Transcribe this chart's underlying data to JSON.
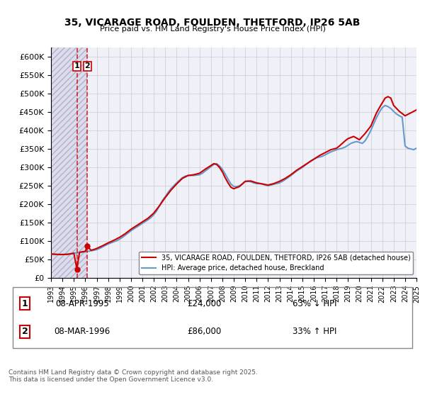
{
  "title": "35, VICARAGE ROAD, FOULDEN, THETFORD, IP26 5AB",
  "subtitle": "Price paid vs. HM Land Registry's House Price Index (HPI)",
  "legend_line1": "35, VICARAGE ROAD, FOULDEN, THETFORD, IP26 5AB (detached house)",
  "legend_line2": "HPI: Average price, detached house, Breckland",
  "annotation1_label": "1",
  "annotation1_date": "08-APR-1995",
  "annotation1_price": "£24,000",
  "annotation1_hpi": "63% ↓ HPI",
  "annotation2_label": "2",
  "annotation2_date": "08-MAR-1996",
  "annotation2_price": "£86,000",
  "annotation2_hpi": "33% ↑ HPI",
  "footnote": "Contains HM Land Registry data © Crown copyright and database right 2025.\nThis data is licensed under the Open Government Licence v3.0.",
  "house_color": "#cc0000",
  "hpi_color": "#6699cc",
  "vline_color": "#cc0000",
  "background_hatch_color": "#e8e8f0",
  "grid_color": "#cccccc",
  "ylim_min": 0,
  "ylim_max": 625000,
  "purchase1_year": 1995.27,
  "purchase1_value": 24000,
  "purchase2_year": 1996.18,
  "purchase2_value": 86000,
  "hpi_years": [
    1993.0,
    1993.25,
    1993.5,
    1993.75,
    1994.0,
    1994.25,
    1994.5,
    1994.75,
    1995.0,
    1995.25,
    1995.5,
    1995.75,
    1996.0,
    1996.25,
    1996.5,
    1996.75,
    1997.0,
    1997.25,
    1997.5,
    1997.75,
    1998.0,
    1998.25,
    1998.5,
    1998.75,
    1999.0,
    1999.25,
    1999.5,
    1999.75,
    2000.0,
    2000.25,
    2000.5,
    2000.75,
    2001.0,
    2001.25,
    2001.5,
    2001.75,
    2002.0,
    2002.25,
    2002.5,
    2002.75,
    2003.0,
    2003.25,
    2003.5,
    2003.75,
    2004.0,
    2004.25,
    2004.5,
    2004.75,
    2005.0,
    2005.25,
    2005.5,
    2005.75,
    2006.0,
    2006.25,
    2006.5,
    2006.75,
    2007.0,
    2007.25,
    2007.5,
    2007.75,
    2008.0,
    2008.25,
    2008.5,
    2008.75,
    2009.0,
    2009.25,
    2009.5,
    2009.75,
    2010.0,
    2010.25,
    2010.5,
    2010.75,
    2011.0,
    2011.25,
    2011.5,
    2011.75,
    2012.0,
    2012.25,
    2012.5,
    2012.75,
    2013.0,
    2013.25,
    2013.5,
    2013.75,
    2014.0,
    2014.25,
    2014.5,
    2014.75,
    2015.0,
    2015.25,
    2015.5,
    2015.75,
    2016.0,
    2016.25,
    2016.5,
    2016.75,
    2017.0,
    2017.25,
    2017.5,
    2017.75,
    2018.0,
    2018.25,
    2018.5,
    2018.75,
    2019.0,
    2019.25,
    2019.5,
    2019.75,
    2020.0,
    2020.25,
    2020.5,
    2020.75,
    2021.0,
    2021.25,
    2021.5,
    2021.75,
    2022.0,
    2022.25,
    2022.5,
    2022.75,
    2023.0,
    2023.25,
    2023.5,
    2023.75,
    2024.0,
    2024.25,
    2024.5,
    2024.75,
    2025.0
  ],
  "hpi_values": [
    65000,
    64000,
    63500,
    63000,
    63500,
    64000,
    65000,
    66000,
    67000,
    68000,
    69000,
    70000,
    71000,
    72000,
    73500,
    75000,
    77000,
    80000,
    84000,
    88000,
    92000,
    95000,
    98000,
    101000,
    105000,
    110000,
    116000,
    122000,
    128000,
    133000,
    138000,
    143000,
    148000,
    153000,
    158000,
    164000,
    172000,
    182000,
    196000,
    210000,
    220000,
    232000,
    242000,
    250000,
    258000,
    265000,
    272000,
    276000,
    278000,
    278000,
    278000,
    279000,
    280000,
    284000,
    290000,
    296000,
    302000,
    308000,
    310000,
    304000,
    295000,
    282000,
    268000,
    255000,
    248000,
    248000,
    250000,
    255000,
    262000,
    263000,
    261000,
    258000,
    256000,
    256000,
    255000,
    252000,
    250000,
    252000,
    254000,
    256000,
    258000,
    262000,
    267000,
    272000,
    278000,
    284000,
    290000,
    295000,
    300000,
    306000,
    312000,
    318000,
    322000,
    326000,
    328000,
    330000,
    334000,
    338000,
    342000,
    345000,
    348000,
    350000,
    352000,
    355000,
    360000,
    365000,
    368000,
    370000,
    368000,
    365000,
    372000,
    385000,
    400000,
    418000,
    435000,
    450000,
    462000,
    468000,
    465000,
    460000,
    452000,
    445000,
    440000,
    436000,
    358000,
    352000,
    350000,
    348000,
    352000
  ],
  "house_years": [
    1993.0,
    1993.5,
    1994.0,
    1994.5,
    1995.0,
    1995.27,
    1995.5,
    1995.75,
    1996.0,
    1996.18,
    1996.5,
    1996.75,
    1997.0,
    1997.5,
    1998.0,
    1998.5,
    1999.0,
    1999.5,
    2000.0,
    2000.5,
    2001.0,
    2001.5,
    2002.0,
    2002.5,
    2003.0,
    2003.5,
    2004.0,
    2004.5,
    2005.0,
    2005.5,
    2006.0,
    2006.5,
    2007.0,
    2007.25,
    2007.5,
    2007.75,
    2008.0,
    2008.25,
    2008.5,
    2008.75,
    2009.0,
    2009.5,
    2010.0,
    2010.5,
    2011.0,
    2011.5,
    2012.0,
    2012.5,
    2013.0,
    2013.5,
    2014.0,
    2014.5,
    2015.0,
    2015.5,
    2016.0,
    2016.5,
    2017.0,
    2017.5,
    2018.0,
    2018.25,
    2018.5,
    2018.75,
    2019.0,
    2019.5,
    2020.0,
    2020.5,
    2021.0,
    2021.25,
    2021.5,
    2021.75,
    2022.0,
    2022.25,
    2022.5,
    2022.75,
    2023.0,
    2023.5,
    2024.0,
    2024.5,
    2025.0
  ],
  "house_values": [
    65000,
    64000,
    63500,
    64000,
    67000,
    24000,
    69500,
    71000,
    72000,
    86000,
    75000,
    77000,
    80000,
    87000,
    95000,
    102000,
    110000,
    120000,
    132000,
    142000,
    152000,
    162000,
    176000,
    196000,
    218000,
    238000,
    255000,
    270000,
    278000,
    280000,
    284000,
    295000,
    305000,
    310000,
    308000,
    300000,
    288000,
    272000,
    258000,
    246000,
    242000,
    248000,
    262000,
    263000,
    258000,
    255000,
    252000,
    256000,
    262000,
    270000,
    280000,
    292000,
    302000,
    312000,
    322000,
    332000,
    340000,
    348000,
    352000,
    358000,
    365000,
    372000,
    378000,
    384000,
    375000,
    392000,
    412000,
    430000,
    448000,
    462000,
    475000,
    488000,
    492000,
    488000,
    468000,
    452000,
    440000,
    448000,
    456000
  ],
  "xmin": 1993,
  "xmax": 2025,
  "xticks": [
    1993,
    1994,
    1995,
    1996,
    1997,
    1998,
    1999,
    2000,
    2001,
    2002,
    2003,
    2004,
    2005,
    2006,
    2007,
    2008,
    2009,
    2010,
    2011,
    2012,
    2013,
    2014,
    2015,
    2016,
    2017,
    2018,
    2019,
    2020,
    2021,
    2022,
    2023,
    2024,
    2025
  ],
  "yticks": [
    0,
    50000,
    100000,
    150000,
    200000,
    250000,
    300000,
    350000,
    400000,
    450000,
    500000,
    550000,
    600000
  ],
  "ytick_labels": [
    "£0",
    "£50K",
    "£100K",
    "£150K",
    "£200K",
    "£250K",
    "£300K",
    "£350K",
    "£400K",
    "£450K",
    "£500K",
    "£550K",
    "£600K"
  ]
}
